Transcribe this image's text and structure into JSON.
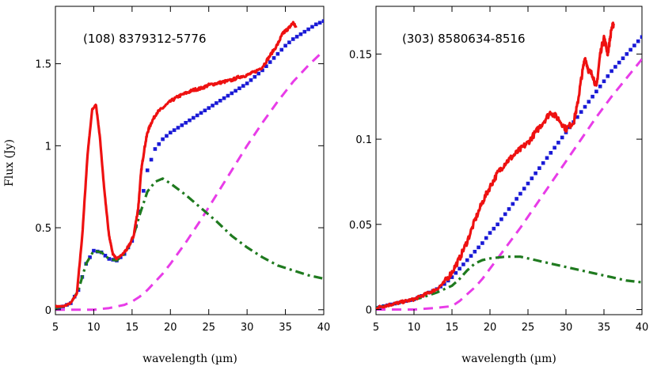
{
  "chart_data": [
    {
      "type": "line",
      "title": "(108) 8379312-5776",
      "xlabel": "wavelength (µm)",
      "ylabel": "Flux (Jy)",
      "xlim": [
        5,
        40
      ],
      "ylim": [
        -0.03,
        1.85
      ],
      "xticks": [
        5,
        10,
        15,
        20,
        25,
        30,
        35,
        40
      ],
      "xtick_labels": [
        "5",
        "10",
        "15",
        "20",
        "25",
        "30",
        "35",
        "40"
      ],
      "yticks": [
        0,
        0.5,
        1,
        1.5
      ],
      "ytick_labels": [
        "0",
        "0.5",
        "1",
        "1.5"
      ],
      "grid": false,
      "series": [
        {
          "color": "#ee1111",
          "style": "solid",
          "noise": 0.008,
          "x": [
            5,
            6,
            7,
            7.8,
            8.5,
            9.2,
            9.8,
            10.3,
            10.8,
            11.4,
            12,
            12.5,
            13,
            13.8,
            14.5,
            15.2,
            15.8,
            16.2,
            16.6,
            17,
            17.5,
            18.2,
            19,
            20,
            21,
            22,
            23,
            24,
            25,
            26,
            27,
            28,
            29,
            30,
            31,
            32,
            33,
            34,
            34.6,
            35,
            35.5,
            36,
            36.4
          ],
          "y": [
            0.02,
            0.02,
            0.04,
            0.1,
            0.45,
            0.95,
            1.22,
            1.25,
            1.05,
            0.72,
            0.45,
            0.34,
            0.31,
            0.34,
            0.38,
            0.45,
            0.62,
            0.85,
            0.98,
            1.08,
            1.14,
            1.2,
            1.23,
            1.27,
            1.3,
            1.32,
            1.34,
            1.35,
            1.37,
            1.38,
            1.39,
            1.4,
            1.42,
            1.43,
            1.45,
            1.48,
            1.55,
            1.62,
            1.68,
            1.7,
            1.72,
            1.75,
            1.72
          ]
        },
        {
          "color": "#1a1ad6",
          "style": "dotted",
          "x": [
            5,
            6,
            7,
            8,
            9,
            10,
            11,
            12,
            13,
            14,
            15,
            16,
            17,
            18,
            19,
            20,
            21,
            22,
            23,
            24,
            25,
            26,
            27,
            28,
            29,
            30,
            31,
            32,
            33,
            34,
            35,
            36,
            37,
            38,
            39,
            40
          ],
          "y": [
            0.01,
            0.02,
            0.04,
            0.12,
            0.28,
            0.36,
            0.35,
            0.31,
            0.3,
            0.34,
            0.42,
            0.6,
            0.85,
            0.98,
            1.04,
            1.08,
            1.11,
            1.14,
            1.17,
            1.2,
            1.23,
            1.26,
            1.29,
            1.32,
            1.35,
            1.38,
            1.42,
            1.46,
            1.51,
            1.56,
            1.61,
            1.65,
            1.68,
            1.71,
            1.74,
            1.76
          ]
        },
        {
          "color": "#1f7a1f",
          "style": "dashdot",
          "x": [
            5,
            6,
            7,
            8,
            9,
            10,
            11,
            12,
            13,
            14,
            15,
            16,
            17,
            18,
            19,
            20,
            22,
            24,
            26,
            28,
            30,
            32,
            34,
            36,
            38,
            40
          ],
          "y": [
            0.01,
            0.02,
            0.04,
            0.12,
            0.28,
            0.36,
            0.35,
            0.31,
            0.3,
            0.34,
            0.42,
            0.58,
            0.72,
            0.78,
            0.8,
            0.77,
            0.7,
            0.62,
            0.54,
            0.45,
            0.38,
            0.32,
            0.27,
            0.24,
            0.21,
            0.19
          ]
        },
        {
          "color": "#e83ce8",
          "style": "dashed",
          "x": [
            5,
            8,
            10,
            12,
            14,
            15,
            16,
            17,
            18,
            19,
            20,
            22,
            24,
            26,
            28,
            30,
            32,
            34,
            36,
            38,
            40
          ],
          "y": [
            0,
            0,
            0,
            0.01,
            0.03,
            0.05,
            0.08,
            0.12,
            0.17,
            0.22,
            0.28,
            0.41,
            0.55,
            0.7,
            0.85,
            1.0,
            1.14,
            1.27,
            1.39,
            1.49,
            1.58
          ]
        }
      ]
    },
    {
      "type": "line",
      "title": "(303) 8580634-8516",
      "xlabel": "wavelength (µm)",
      "ylabel": "",
      "xlim": [
        5,
        40
      ],
      "ylim": [
        -0.003,
        0.178
      ],
      "xticks": [
        5,
        10,
        15,
        20,
        25,
        30,
        35,
        40
      ],
      "xtick_labels": [
        "5",
        "10",
        "15",
        "20",
        "25",
        "30",
        "35",
        "40"
      ],
      "yticks": [
        0,
        0.05,
        0.1,
        0.15
      ],
      "ytick_labels": [
        "0",
        "0.05",
        "0.1",
        "0.15"
      ],
      "grid": false,
      "series": [
        {
          "color": "#ee1111",
          "style": "solid",
          "noise": 0.0016,
          "x": [
            5,
            6,
            7,
            8,
            9,
            10,
            11,
            12,
            13,
            14,
            15,
            16,
            17,
            18,
            19,
            20,
            21,
            22,
            23,
            24,
            25,
            26,
            27,
            28,
            29,
            30,
            31,
            31.5,
            32,
            32.5,
            33,
            33.5,
            34,
            34.5,
            35,
            35.5,
            36,
            36.3
          ],
          "y": [
            0.001,
            0.002,
            0.003,
            0.004,
            0.005,
            0.006,
            0.008,
            0.01,
            0.012,
            0.016,
            0.022,
            0.03,
            0.04,
            0.052,
            0.063,
            0.072,
            0.08,
            0.086,
            0.09,
            0.094,
            0.098,
            0.104,
            0.11,
            0.116,
            0.112,
            0.106,
            0.11,
            0.12,
            0.135,
            0.148,
            0.14,
            0.138,
            0.13,
            0.15,
            0.16,
            0.15,
            0.165,
            0.168
          ]
        },
        {
          "color": "#1a1ad6",
          "style": "dotted",
          "x": [
            5,
            6,
            7,
            8,
            9,
            10,
            11,
            12,
            13,
            14,
            15,
            16,
            17,
            18,
            19,
            20,
            21,
            22,
            23,
            24,
            25,
            26,
            27,
            28,
            29,
            30,
            31,
            32,
            33,
            34,
            35,
            36,
            37,
            38,
            39,
            40
          ],
          "y": [
            0.001,
            0.002,
            0.003,
            0.004,
            0.005,
            0.006,
            0.008,
            0.01,
            0.012,
            0.015,
            0.019,
            0.024,
            0.029,
            0.034,
            0.039,
            0.045,
            0.05,
            0.056,
            0.062,
            0.068,
            0.074,
            0.08,
            0.086,
            0.092,
            0.098,
            0.104,
            0.11,
            0.116,
            0.122,
            0.128,
            0.134,
            0.14,
            0.145,
            0.15,
            0.155,
            0.16
          ]
        },
        {
          "color": "#1f7a1f",
          "style": "dashdot",
          "x": [
            5,
            7,
            9,
            11,
            13,
            15,
            16,
            17,
            18,
            19,
            20,
            22,
            24,
            26,
            28,
            30,
            32,
            34,
            36,
            38,
            40
          ],
          "y": [
            0.001,
            0.003,
            0.005,
            0.007,
            0.01,
            0.014,
            0.018,
            0.023,
            0.027,
            0.029,
            0.03,
            0.031,
            0.031,
            0.029,
            0.027,
            0.025,
            0.023,
            0.021,
            0.019,
            0.017,
            0.016
          ]
        },
        {
          "color": "#e83ce8",
          "style": "dashed",
          "x": [
            5,
            10,
            13,
            15,
            16,
            17,
            18,
            19,
            20,
            21,
            22,
            24,
            26,
            28,
            30,
            32,
            34,
            36,
            38,
            40
          ],
          "y": [
            0,
            0,
            0.001,
            0.002,
            0.005,
            0.009,
            0.013,
            0.018,
            0.024,
            0.03,
            0.036,
            0.048,
            0.061,
            0.074,
            0.087,
            0.1,
            0.113,
            0.125,
            0.136,
            0.147
          ]
        }
      ]
    }
  ]
}
